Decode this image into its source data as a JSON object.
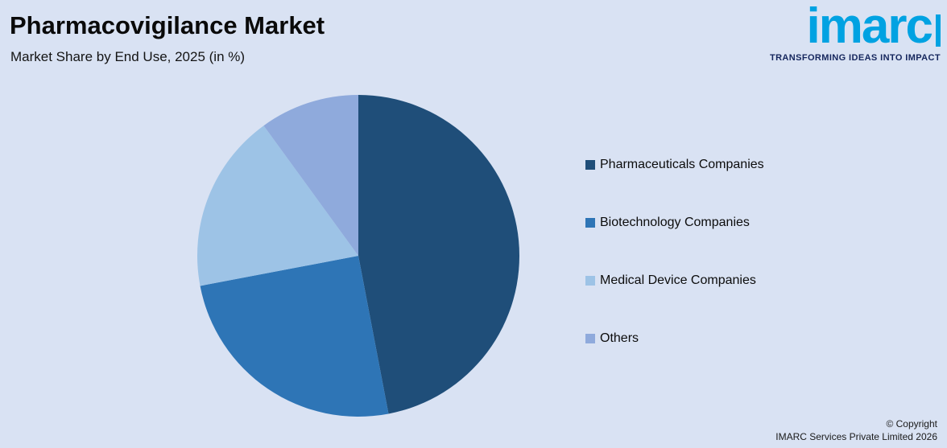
{
  "header": {
    "title": "Pharmacovigilance Market",
    "subtitle": "Market Share by End Use, 2025 (in %)"
  },
  "logo": {
    "text": "imarc",
    "tagline": "TRANSFORMING IDEAS INTO IMPACT",
    "brand_color": "#00a2e2",
    "tagline_color": "#15265d"
  },
  "chart_data": {
    "type": "pie",
    "title": "Pharmacovigilance Market",
    "subtitle": "Market Share by End Use, 2025 (in %)",
    "categories": [
      "Pharmaceuticals Companies",
      "Biotechnology Companies",
      "Medical Device Companies",
      "Others"
    ],
    "values": [
      47,
      25,
      18,
      10
    ],
    "colors": [
      "#1f4e79",
      "#2e75b6",
      "#9dc3e6",
      "#8faadc"
    ],
    "start_angle_deg": 0,
    "direction": "clockwise",
    "legend_position": "right",
    "data_labels": false,
    "background_color": "#d9e2f3"
  },
  "footer": {
    "line1": "© Copyright",
    "line2": "IMARC Services Private Limited 2026"
  }
}
